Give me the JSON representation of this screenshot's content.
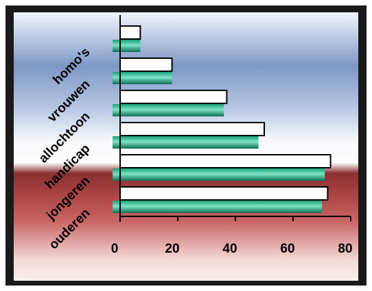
{
  "chart_data": {
    "type": "bar",
    "orientation": "horizontal",
    "categories": [
      "ouderen",
      "jongeren",
      "handicap",
      "allochtoon",
      "vrouwen",
      "homo's"
    ],
    "series": [
      {
        "values": [
          72,
          73,
          50,
          37,
          18,
          7
        ]
      },
      {
        "values": [
          70,
          71,
          48,
          36,
          18,
          7
        ]
      }
    ],
    "x_ticks": [
      "0",
      "20",
      "40",
      "60",
      "80"
    ],
    "xlim": [
      0,
      80
    ],
    "title": "",
    "xlabel": "",
    "ylabel": "",
    "grid": false,
    "legend": "none",
    "colors": {
      "series_1_fill": "#ffffff",
      "series_1_stroke": "#000000",
      "series_2_fill": "#16a07a",
      "axis": "#000000"
    }
  }
}
